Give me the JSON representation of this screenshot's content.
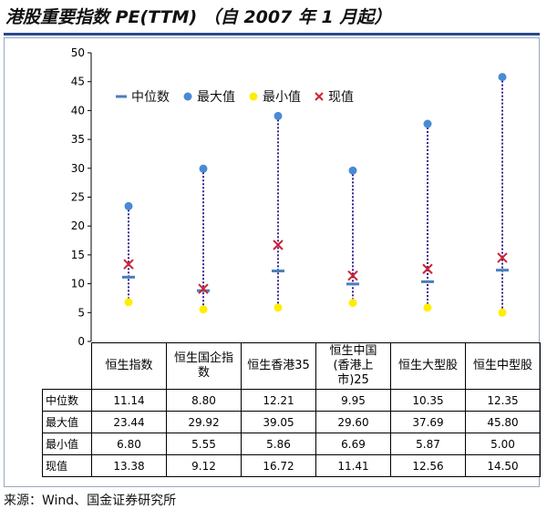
{
  "title": "港股重要指数 PE(TTM) （自 2007 年 1 月起）",
  "source": "来源：Wind、国金证券研究所",
  "legend": {
    "median": "中位数",
    "max": "最大值",
    "min": "最小值",
    "current": "现值"
  },
  "colors": {
    "median": "#4a7ebb",
    "max": "#4a8ad4",
    "min": "#ffee00",
    "current": "#cc2233",
    "range_line": "#3a1f8f"
  },
  "table": {
    "headers": [
      "恒生指数",
      "恒生国企指数",
      "恒生香港35",
      "恒生中国(香港上市)25",
      "恒生大型股",
      "恒生中型股"
    ],
    "header_lines": [
      [
        "恒生指数"
      ],
      [
        "恒生国企指",
        "数"
      ],
      [
        "恒生香港35"
      ],
      [
        "恒生中国",
        "(香港上",
        "市)25"
      ],
      [
        "恒生大型股"
      ],
      [
        "恒生中型股"
      ]
    ],
    "rows": [
      {
        "label": "中位数",
        "values": [
          "11.14",
          "8.80",
          "12.21",
          "9.95",
          "10.35",
          "12.35"
        ]
      },
      {
        "label": "最大值",
        "values": [
          "23.44",
          "29.92",
          "39.05",
          "29.60",
          "37.69",
          "45.80"
        ]
      },
      {
        "label": "最小值",
        "values": [
          "6.80",
          "5.55",
          "5.86",
          "6.69",
          "5.87",
          "5.00"
        ]
      },
      {
        "label": "现值",
        "values": [
          "13.38",
          "9.12",
          "16.72",
          "11.41",
          "12.56",
          "14.50"
        ]
      }
    ]
  },
  "chart_data": {
    "type": "scatter",
    "categories": [
      "恒生指数",
      "恒生国企指数",
      "恒生香港35",
      "恒生中国(香港上市)25",
      "恒生大型股",
      "恒生中型股"
    ],
    "series": [
      {
        "name": "中位数",
        "values": [
          11.14,
          8.8,
          12.21,
          9.95,
          10.35,
          12.35
        ]
      },
      {
        "name": "最大值",
        "values": [
          23.44,
          29.92,
          39.05,
          29.6,
          37.69,
          45.8
        ]
      },
      {
        "name": "最小值",
        "values": [
          6.8,
          5.55,
          5.86,
          6.69,
          5.87,
          5.0
        ]
      },
      {
        "name": "现值",
        "values": [
          13.38,
          9.12,
          16.72,
          11.41,
          12.56,
          14.5
        ]
      }
    ],
    "ylim": [
      0,
      50
    ],
    "yticks": [
      0,
      5,
      10,
      15,
      20,
      25,
      30,
      35,
      40,
      45,
      50
    ],
    "grid": false,
    "legend_position": "top-left"
  }
}
